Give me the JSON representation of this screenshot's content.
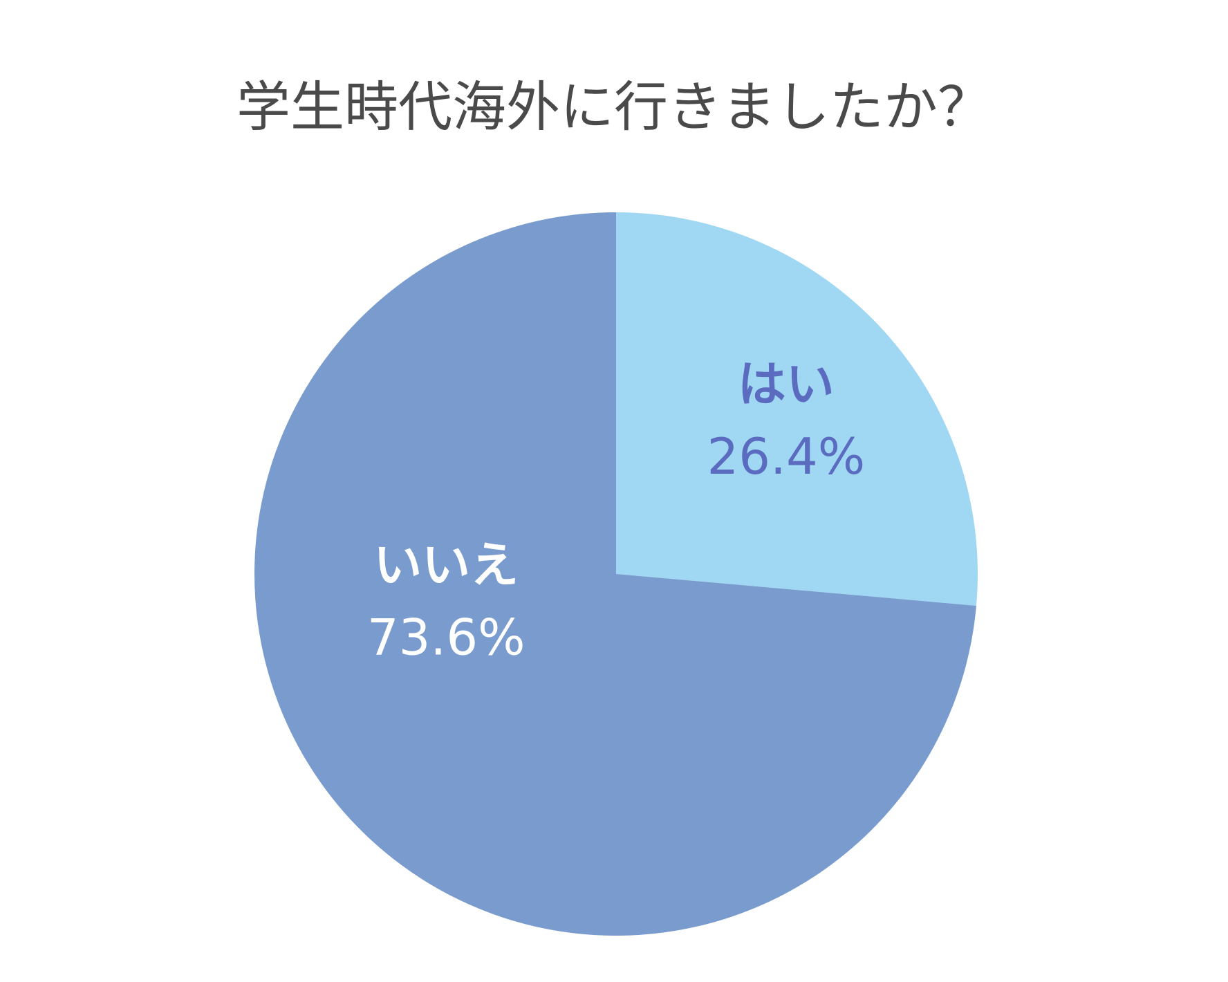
{
  "chart_data": {
    "type": "pie",
    "title": "学生時代海外に行きましたか？",
    "categories": [
      "はい",
      "いいえ"
    ],
    "values": [
      26.4,
      73.6
    ],
    "value_labels": [
      "26.4%",
      "73.6%"
    ],
    "colors": [
      "#a0d8f3",
      "#799bce"
    ],
    "label_colors": [
      "#5b6bbf",
      "#ffffff"
    ]
  }
}
